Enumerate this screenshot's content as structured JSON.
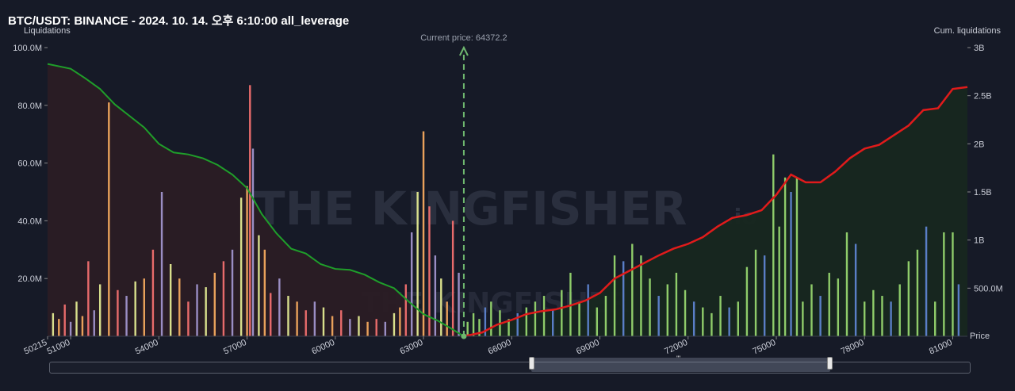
{
  "header": {
    "title": "BTC/USDT: BINANCE - 2024. 10. 14. 오후 6:10:00 all_leverage"
  },
  "chart_data": {
    "type": "bar",
    "title": "BTC/USDT: BINANCE - 2024. 10. 14. 오후 6:10:00 all_leverage",
    "ylabel": "Liquidations",
    "ylabel_right": "Cum. liquidations",
    "xlabel": "Price",
    "current_price_label": "Current price: 64372.2",
    "current_price": 64372.2,
    "xlim": [
      50215,
      81500
    ],
    "ylim": [
      0,
      100000000
    ],
    "ylim_right": [
      0,
      3000000000
    ],
    "x_ticks": [
      "50215",
      "51000",
      "54000",
      "57000",
      "60000",
      "63000",
      "66000",
      "69000",
      "72000",
      "75000",
      "78000",
      "81000"
    ],
    "x_tick_values": [
      50215,
      51000,
      54000,
      57000,
      60000,
      63000,
      66000,
      69000,
      72000,
      75000,
      78000,
      81000
    ],
    "y_ticks": [
      "100.0M",
      "80.0M",
      "60.0M",
      "40.0M",
      "20.0M"
    ],
    "y_tick_values": [
      100000000,
      80000000,
      60000000,
      40000000,
      20000000
    ],
    "y_right_ticks": [
      "3B",
      "2.5B",
      "2B",
      "1.5B",
      "1B",
      "500.0M"
    ],
    "y_right_tick_values": [
      3000000000,
      2500000000,
      2000000000,
      1500000000,
      1000000000,
      500000000
    ],
    "grid": false,
    "watermark": "THE KINGFISHER",
    "watermark_suffix": ".io",
    "scrollbar_grip": "'''",
    "colors": {
      "background": "#161a27",
      "long_fill": "#2a1c24",
      "short_fill": "#17271f",
      "long_line": "#1f9e2a",
      "short_line": "#e01b1b",
      "current_price": "#6fb86f",
      "bar_yellow": "#d8df8c",
      "bar_orange": "#e9a15b",
      "bar_red": "#e86b6b",
      "bar_purple": "#9a8ec4",
      "bar_green": "#8fcc6a",
      "bar_blue": "#5a7ec6"
    },
    "series": [
      {
        "name": "",
        "role": "bars_left",
        "x": [
          50400,
          50600,
          50800,
          51000,
          51200,
          51400,
          51600,
          51800,
          52000,
          52300,
          52600,
          52900,
          53200,
          53500,
          53800,
          54100,
          54400,
          54700,
          55000,
          55300,
          55600,
          55900,
          56200,
          56500,
          56800,
          57000,
          57100,
          57200,
          57400,
          57600,
          57800,
          58100,
          58400,
          58700,
          59000,
          59300,
          59600,
          59900,
          60200,
          60500,
          60800,
          61100,
          61400,
          61700,
          62000,
          62200,
          62400,
          62600,
          62800,
          63000,
          63200,
          63400,
          63600,
          63800,
          64000,
          64200
        ],
        "values": [
          8,
          6,
          11,
          5,
          12,
          7,
          26,
          9,
          18,
          81,
          16,
          14,
          19,
          20,
          30,
          50,
          25,
          20,
          12,
          18,
          17,
          22,
          26,
          30,
          48,
          52,
          87,
          65,
          35,
          30,
          15,
          20,
          14,
          12,
          9,
          12,
          10,
          7,
          9,
          6,
          7,
          5,
          6,
          5,
          8,
          10,
          18,
          36,
          50,
          71,
          45,
          28,
          20,
          12,
          40,
          22
        ]
      },
      {
        "name": "",
        "role": "bars_right",
        "x": [
          64500,
          64700,
          64900,
          65100,
          65300,
          65600,
          65900,
          66200,
          66500,
          66800,
          67100,
          67400,
          67700,
          68000,
          68300,
          68600,
          68900,
          69200,
          69500,
          69800,
          70100,
          70400,
          70700,
          71000,
          71300,
          71600,
          71900,
          72200,
          72500,
          72800,
          73100,
          73400,
          73700,
          74000,
          74300,
          74600,
          74900,
          75100,
          75300,
          75500,
          75700,
          75900,
          76200,
          76500,
          76800,
          77100,
          77400,
          77700,
          78000,
          78300,
          78600,
          78900,
          79200,
          79500,
          79800,
          80100,
          80400,
          80700,
          81000,
          81200
        ],
        "values": [
          5,
          8,
          6,
          10,
          12,
          9,
          6,
          8,
          10,
          12,
          14,
          9,
          16,
          22,
          12,
          18,
          10,
          14,
          28,
          26,
          32,
          28,
          20,
          14,
          18,
          22,
          16,
          12,
          10,
          8,
          14,
          10,
          12,
          24,
          30,
          28,
          63,
          38,
          55,
          50,
          55,
          12,
          18,
          14,
          22,
          20,
          36,
          32,
          12,
          16,
          14,
          12,
          18,
          26,
          30,
          38,
          12,
          36,
          36,
          18
        ]
      },
      {
        "name": "",
        "role": "cumulative_long",
        "x": [
          50215,
          51000,
          51500,
          52000,
          52500,
          53000,
          53500,
          54000,
          54500,
          55000,
          55500,
          56000,
          56500,
          57000,
          57500,
          58000,
          58500,
          59000,
          59500,
          60000,
          60500,
          61000,
          61500,
          62000,
          62500,
          63000,
          63500,
          64000,
          64372
        ],
        "values": [
          2830000000,
          2780000000,
          2680000000,
          2570000000,
          2410000000,
          2290000000,
          2170000000,
          2000000000,
          1910000000,
          1890000000,
          1850000000,
          1780000000,
          1680000000,
          1540000000,
          1270000000,
          1070000000,
          910000000,
          860000000,
          750000000,
          700000000,
          690000000,
          640000000,
          560000000,
          500000000,
          360000000,
          230000000,
          160000000,
          70000000,
          0
        ]
      },
      {
        "name": "",
        "role": "cumulative_short",
        "x": [
          64372,
          65000,
          65500,
          66000,
          66500,
          67000,
          67500,
          68000,
          68500,
          69000,
          69500,
          70000,
          70500,
          71000,
          71500,
          72000,
          72500,
          73000,
          73500,
          74000,
          74500,
          75000,
          75500,
          76000,
          76500,
          77000,
          77500,
          78000,
          78500,
          79000,
          79500,
          80000,
          80500,
          81000,
          81500
        ],
        "values": [
          0,
          40000000,
          120000000,
          170000000,
          230000000,
          260000000,
          280000000,
          320000000,
          370000000,
          450000000,
          600000000,
          680000000,
          760000000,
          840000000,
          910000000,
          960000000,
          1030000000,
          1140000000,
          1230000000,
          1260000000,
          1310000000,
          1470000000,
          1680000000,
          1600000000,
          1600000000,
          1710000000,
          1850000000,
          1950000000,
          1990000000,
          2090000000,
          2190000000,
          2350000000,
          2370000000,
          2570000000,
          2590000000
        ]
      }
    ]
  }
}
